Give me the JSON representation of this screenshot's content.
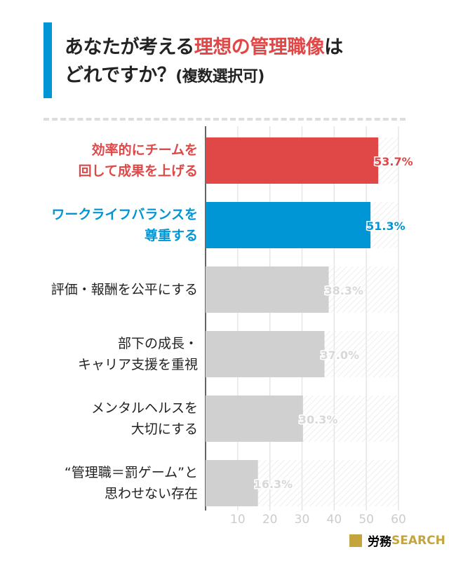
{
  "title": {
    "part1": "あなたが考える",
    "highlight": "理想の管理職像",
    "part2": "は",
    "line2": "どれですか？",
    "note": "(複数選択可)"
  },
  "brand": {
    "name": "労務",
    "suffix": "SEARCH"
  },
  "chart_data": {
    "type": "bar",
    "orientation": "horizontal",
    "categories": [
      "効率的にチームを\n回して成果を上げる",
      "ワークライフバランスを\n尊重する",
      "評価・報酬を公平にする",
      "部下の成長・\nキャリア支援を重視",
      "メンタルヘルスを\n大切にする",
      "“管理職＝罰ゲーム”と\n思わせない存在"
    ],
    "values": [
      53.7,
      51.3,
      38.3,
      37.0,
      30.3,
      16.3
    ],
    "labels": [
      "53.7%",
      "51.3%",
      "38.3%",
      "37.0%",
      "30.3%",
      "16.3%"
    ],
    "colors": [
      "#e04848",
      "#0096d6",
      "#d0d0d0",
      "#d0d0d0",
      "#d0d0d0",
      "#d0d0d0"
    ],
    "label_colors": [
      "#e04848",
      "#0096d6",
      "#222222",
      "#222222",
      "#222222",
      "#222222"
    ],
    "xlim": [
      0,
      60
    ],
    "xticks": [
      "10",
      "20",
      "30",
      "40",
      "50",
      "60"
    ],
    "grid": true
  }
}
